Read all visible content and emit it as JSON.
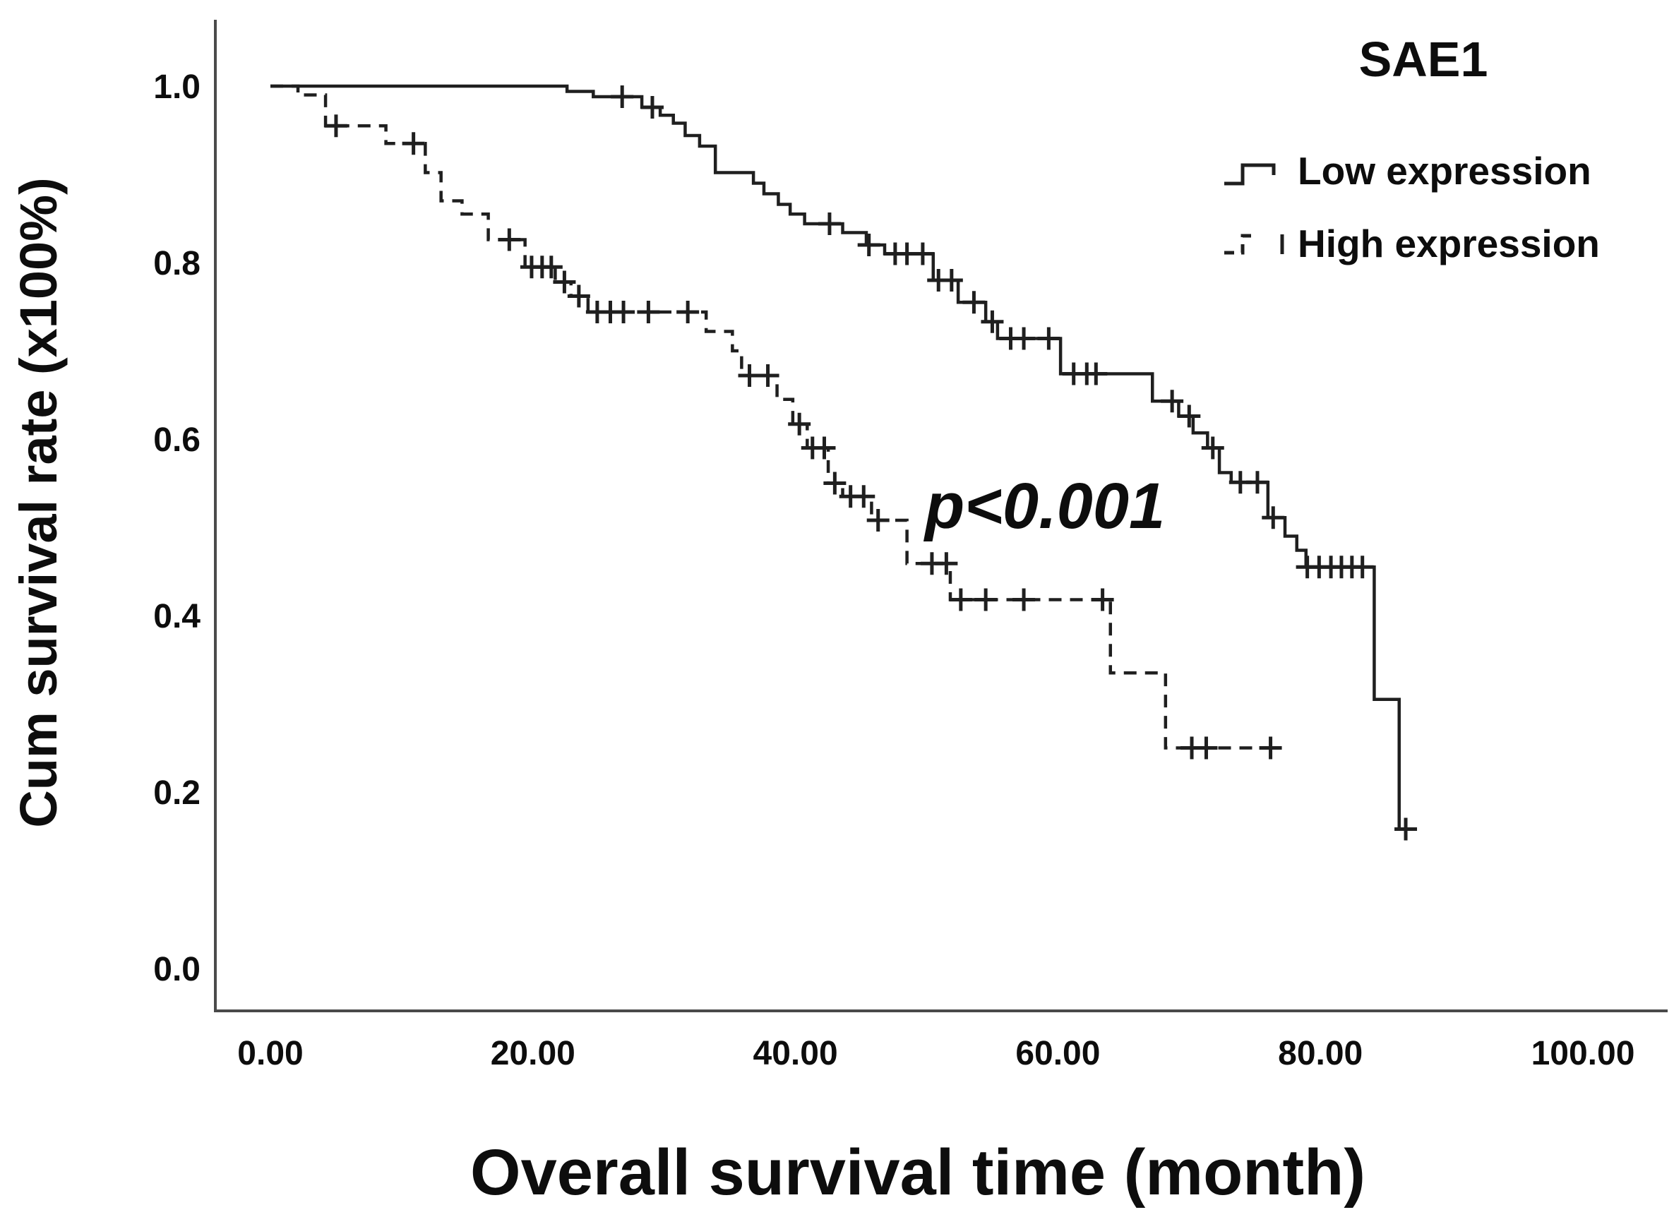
{
  "chart_data": {
    "type": "line",
    "subtype": "kaplan-meier-step-curve",
    "title": "SAE1",
    "xlabel": "Overall survival time (month)",
    "ylabel": "Cum survival rate (x100%)",
    "xlim": [
      0,
      100
    ],
    "ylim": [
      0.0,
      1.0
    ],
    "grid": false,
    "legend_position": "top-right",
    "xticks": {
      "values": [
        0,
        20,
        40,
        60,
        80,
        100
      ],
      "labels": [
        "0.00",
        "20.00",
        "40.00",
        "60.00",
        "80.00",
        "100.00"
      ]
    },
    "yticks": {
      "values": [
        0.0,
        0.2,
        0.4,
        0.6,
        0.8,
        1.0
      ],
      "labels": [
        "0.0",
        "0.2",
        "0.4",
        "0.6",
        "0.8",
        "1.0"
      ]
    },
    "annotation": {
      "text": "p<0.001",
      "x_month": 50,
      "y_survival": 0.55
    },
    "line_color": "#1f1f1f",
    "axis_color": "#4a4a4a",
    "series": [
      {
        "name": "Low expression",
        "line_style": "solid",
        "steps": [
          [
            0,
            1.0
          ],
          [
            22.6,
            0.994
          ],
          [
            24.6,
            0.988
          ],
          [
            28.3,
            0.976
          ],
          [
            29.7,
            0.967
          ],
          [
            30.7,
            0.958
          ],
          [
            31.6,
            0.944
          ],
          [
            32.7,
            0.932
          ],
          [
            33.9,
            0.902
          ],
          [
            36.8,
            0.89
          ],
          [
            37.6,
            0.878
          ],
          [
            38.7,
            0.866
          ],
          [
            39.6,
            0.855
          ],
          [
            40.7,
            0.844
          ],
          [
            43.6,
            0.834
          ],
          [
            45.4,
            0.82
          ],
          [
            46.8,
            0.81
          ],
          [
            50.5,
            0.78
          ],
          [
            52.4,
            0.755
          ],
          [
            54.5,
            0.733
          ],
          [
            55.4,
            0.714
          ],
          [
            60.2,
            0.674
          ],
          [
            67.2,
            0.643
          ],
          [
            69.2,
            0.626
          ],
          [
            70.3,
            0.607
          ],
          [
            71.4,
            0.59
          ],
          [
            72.3,
            0.562
          ],
          [
            73.2,
            0.551
          ],
          [
            76.0,
            0.511
          ],
          [
            77.3,
            0.49
          ],
          [
            78.2,
            0.474
          ],
          [
            78.9,
            0.455
          ],
          [
            84.1,
            0.305
          ],
          [
            86.0,
            0.158
          ]
        ],
        "censor_marks": [
          [
            26.8,
            0.988
          ],
          [
            29.1,
            0.976
          ],
          [
            42.6,
            0.844
          ],
          [
            45.6,
            0.82
          ],
          [
            47.6,
            0.81
          ],
          [
            48.5,
            0.81
          ],
          [
            49.7,
            0.81
          ],
          [
            50.9,
            0.78
          ],
          [
            51.9,
            0.78
          ],
          [
            53.6,
            0.755
          ],
          [
            55.0,
            0.733
          ],
          [
            56.4,
            0.714
          ],
          [
            57.4,
            0.714
          ],
          [
            59.3,
            0.714
          ],
          [
            61.2,
            0.674
          ],
          [
            62.2,
            0.674
          ],
          [
            62.9,
            0.674
          ],
          [
            68.7,
            0.643
          ],
          [
            70.0,
            0.626
          ],
          [
            71.8,
            0.59
          ],
          [
            73.9,
            0.551
          ],
          [
            75.2,
            0.551
          ],
          [
            76.4,
            0.511
          ],
          [
            79.0,
            0.455
          ],
          [
            79.9,
            0.455
          ],
          [
            80.8,
            0.455
          ],
          [
            81.6,
            0.455
          ],
          [
            82.4,
            0.455
          ],
          [
            83.2,
            0.455
          ],
          [
            86.5,
            0.158
          ]
        ],
        "end_month": 87.2
      },
      {
        "name": "High expression",
        "line_style": "dashed",
        "steps": [
          [
            0,
            1.0
          ],
          [
            2.1,
            0.99
          ],
          [
            4.2,
            0.955
          ],
          [
            8.8,
            0.935
          ],
          [
            11.8,
            0.902
          ],
          [
            13.0,
            0.87
          ],
          [
            14.6,
            0.855
          ],
          [
            16.6,
            0.826
          ],
          [
            19.4,
            0.795
          ],
          [
            21.7,
            0.778
          ],
          [
            22.9,
            0.762
          ],
          [
            24.2,
            0.744
          ],
          [
            33.2,
            0.722
          ],
          [
            35.2,
            0.7
          ],
          [
            35.9,
            0.672
          ],
          [
            38.6,
            0.645
          ],
          [
            39.8,
            0.617
          ],
          [
            40.9,
            0.59
          ],
          [
            42.5,
            0.55
          ],
          [
            43.6,
            0.535
          ],
          [
            45.8,
            0.508
          ],
          [
            48.5,
            0.459
          ],
          [
            51.8,
            0.418
          ],
          [
            64.0,
            0.335
          ],
          [
            68.2,
            0.25
          ]
        ],
        "censor_marks": [
          [
            5.0,
            0.955
          ],
          [
            10.9,
            0.935
          ],
          [
            18.2,
            0.826
          ],
          [
            19.9,
            0.795
          ],
          [
            20.7,
            0.795
          ],
          [
            21.4,
            0.795
          ],
          [
            22.4,
            0.778
          ],
          [
            23.5,
            0.762
          ],
          [
            24.9,
            0.744
          ],
          [
            25.9,
            0.744
          ],
          [
            26.9,
            0.744
          ],
          [
            28.8,
            0.744
          ],
          [
            31.8,
            0.744
          ],
          [
            36.5,
            0.672
          ],
          [
            37.9,
            0.672
          ],
          [
            40.3,
            0.617
          ],
          [
            41.3,
            0.59
          ],
          [
            42.2,
            0.59
          ],
          [
            43.0,
            0.55
          ],
          [
            44.2,
            0.535
          ],
          [
            45.2,
            0.535
          ],
          [
            46.3,
            0.508
          ],
          [
            50.4,
            0.459
          ],
          [
            51.5,
            0.459
          ],
          [
            52.6,
            0.418
          ],
          [
            54.5,
            0.418
          ],
          [
            57.4,
            0.418
          ],
          [
            63.4,
            0.418
          ],
          [
            70.2,
            0.25
          ],
          [
            71.3,
            0.25
          ],
          [
            76.2,
            0.25
          ]
        ],
        "end_month": 77.0
      }
    ]
  }
}
